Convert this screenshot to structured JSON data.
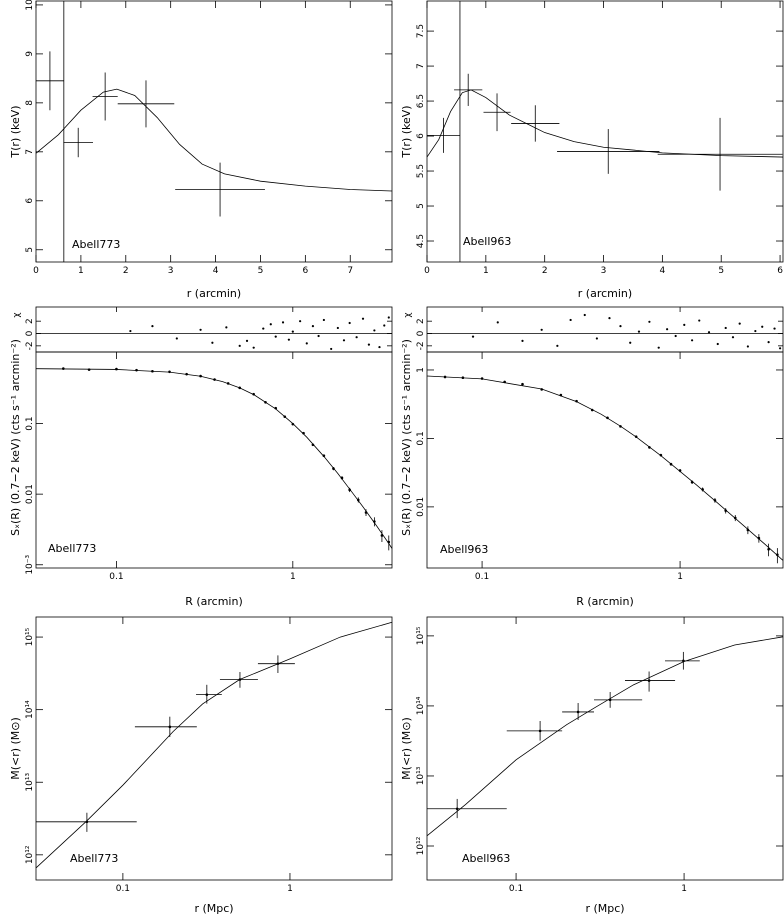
{
  "chart_data": [
    {
      "type": "errorbar",
      "label": "Abell773",
      "xlabel": "r (arcmin)",
      "ylabel": "T(r) (keV)",
      "xlim": [
        0,
        7.93
      ],
      "ylim": [
        4.75,
        10.08
      ],
      "xticks": [
        0,
        1,
        2,
        3,
        4,
        5,
        6,
        7
      ],
      "yticks": [
        5,
        6,
        7,
        8,
        9,
        10
      ],
      "vline": 0.62,
      "points": {
        "x": [
          0.31,
          0.94,
          1.54,
          2.45,
          4.1
        ],
        "xerr": [
          0.31,
          0.33,
          0.28,
          0.63,
          1.0
        ],
        "y": [
          8.45,
          7.19,
          8.13,
          7.98,
          6.23
        ],
        "yerr": [
          0.6,
          0.3,
          0.49,
          0.48,
          0.55
        ]
      },
      "model": {
        "x": [
          0,
          0.5,
          1,
          1.5,
          1.8,
          2.2,
          2.7,
          3.2,
          3.7,
          4.2,
          5,
          6,
          7,
          7.93
        ],
        "y": [
          6.97,
          7.35,
          7.85,
          8.22,
          8.28,
          8.15,
          7.7,
          7.15,
          6.75,
          6.55,
          6.4,
          6.3,
          6.23,
          6.2
        ]
      }
    },
    {
      "type": "errorbar",
      "label": "Abell963",
      "xlabel": "r (arcmin)",
      "ylabel": "T(r) (keV)",
      "xlim": [
        0,
        6.05
      ],
      "ylim": [
        4.2,
        7.93
      ],
      "xticks": [
        0,
        1,
        2,
        3,
        4,
        5,
        6
      ],
      "yticks": [
        4.5,
        5,
        5.5,
        6,
        6.5,
        7,
        7.5
      ],
      "vline": 0.56,
      "points": {
        "x": [
          0.28,
          0.7,
          1.19,
          1.84,
          3.08,
          4.98
        ],
        "xerr": [
          0.28,
          0.24,
          0.23,
          0.41,
          0.87,
          1.06
        ],
        "y": [
          6.01,
          6.66,
          6.34,
          6.18,
          5.78,
          5.74
        ],
        "yerr": [
          0.25,
          0.23,
          0.27,
          0.26,
          0.32,
          0.52
        ]
      },
      "model": {
        "x": [
          0,
          0.2,
          0.4,
          0.6,
          0.75,
          1.0,
          1.4,
          2,
          2.5,
          3,
          4,
          5,
          6.05
        ],
        "y": [
          5.7,
          5.95,
          6.35,
          6.62,
          6.66,
          6.55,
          6.3,
          6.05,
          5.92,
          5.84,
          5.76,
          5.72,
          5.7
        ]
      }
    },
    {
      "type": "errorbar",
      "label": "Abell773",
      "xlabel": "R (arcmin)",
      "ylabel": "Sₓ(R) (0.7−2 keV) (cts s⁻¹ arcmin⁻²)",
      "xscale": "log",
      "yscale": "log",
      "marker": "dot",
      "xlim": [
        0.035,
        3.65
      ],
      "ylim": [
        0.0009,
        1.03
      ],
      "xticks": [
        0.1,
        1
      ],
      "yticks": [
        0.1,
        0.01,
        {
          "value": 0.001,
          "label": "10⁻³"
        }
      ],
      "points": {
        "x": [
          0.05,
          0.07,
          0.1,
          0.13,
          0.16,
          0.2,
          0.25,
          0.3,
          0.36,
          0.43,
          0.5,
          0.6,
          0.7,
          0.8,
          0.9,
          1.0,
          1.15,
          1.3,
          1.5,
          1.7,
          1.9,
          2.1,
          2.35,
          2.6,
          2.9,
          3.2,
          3.5
        ],
        "y": [
          0.6,
          0.58,
          0.59,
          0.57,
          0.55,
          0.54,
          0.5,
          0.47,
          0.42,
          0.37,
          0.32,
          0.26,
          0.2,
          0.165,
          0.125,
          0.098,
          0.073,
          0.05,
          0.035,
          0.023,
          0.017,
          0.0115,
          0.0083,
          0.0055,
          0.0041,
          0.0026,
          0.0021
        ],
        "yerr": [
          0.02,
          0.015,
          0.015,
          0.012,
          0.012,
          0.012,
          0.01,
          0.01,
          0.009,
          0.008,
          0.007,
          0.006,
          0.005,
          0.004,
          0.0035,
          0.003,
          0.0025,
          0.002,
          0.0015,
          0.0012,
          0.001,
          0.0008,
          0.0007,
          0.0006,
          0.0006,
          0.0005,
          0.0005
        ]
      },
      "model": {
        "x": [
          0.035,
          0.1,
          0.2,
          0.3,
          0.4,
          0.5,
          0.6,
          0.8,
          1.0,
          1.2,
          1.5,
          1.8,
          2.1,
          2.5,
          3.0,
          3.5,
          3.65
        ],
        "y": [
          0.598,
          0.583,
          0.535,
          0.467,
          0.392,
          0.32,
          0.257,
          0.161,
          0.1,
          0.064,
          0.0342,
          0.0196,
          0.0118,
          0.0066,
          0.0035,
          0.002,
          0.0017
        ]
      },
      "residuals": {
        "ylabel": "χ",
        "ylim": [
          -3,
          4.3
        ],
        "yticks": [
          -2,
          0,
          2
        ],
        "hline": 0,
        "x": [
          0.12,
          0.16,
          0.22,
          0.3,
          0.35,
          0.42,
          0.5,
          0.55,
          0.6,
          0.68,
          0.75,
          0.8,
          0.88,
          0.95,
          1.0,
          1.1,
          1.2,
          1.3,
          1.4,
          1.5,
          1.65,
          1.8,
          1.95,
          2.1,
          2.3,
          2.5,
          2.7,
          2.9,
          3.1,
          3.3,
          3.5
        ],
        "y": [
          0.4,
          1.2,
          -0.8,
          0.6,
          -1.5,
          1.0,
          -2.0,
          -1.2,
          -2.3,
          0.8,
          1.5,
          -0.5,
          1.8,
          -1.0,
          0.3,
          2.0,
          -1.6,
          1.2,
          -0.4,
          2.2,
          -2.5,
          0.9,
          -1.1,
          1.7,
          -0.6,
          2.4,
          -1.8,
          0.5,
          -2.2,
          1.3,
          2.6
        ]
      }
    },
    {
      "type": "errorbar",
      "label": "Abell963",
      "xlabel": "R (arcmin)",
      "ylabel": "Sₓ(R) (0.7−2 keV) (cts s⁻¹ arcmin⁻²)",
      "xscale": "log",
      "yscale": "log",
      "marker": "dot",
      "xlim": [
        0.0527,
        3.31
      ],
      "ylim": [
        0.00128,
        1.83
      ],
      "xticks": [
        0.1,
        1
      ],
      "yticks": [
        1,
        0.1,
        0.01
      ],
      "points": {
        "x": [
          0.065,
          0.08,
          0.1,
          0.13,
          0.16,
          0.2,
          0.25,
          0.3,
          0.36,
          0.43,
          0.5,
          0.6,
          0.7,
          0.8,
          0.9,
          1.0,
          1.15,
          1.3,
          1.5,
          1.7,
          1.9,
          2.2,
          2.5,
          2.8,
          3.1
        ],
        "y": [
          0.79,
          0.77,
          0.75,
          0.67,
          0.62,
          0.52,
          0.43,
          0.35,
          0.26,
          0.2,
          0.15,
          0.106,
          0.074,
          0.057,
          0.042,
          0.034,
          0.023,
          0.018,
          0.0125,
          0.0088,
          0.0069,
          0.0046,
          0.0035,
          0.0024,
          0.002
        ],
        "yerr": [
          0.03,
          0.02,
          0.02,
          0.015,
          0.014,
          0.012,
          0.01,
          0.009,
          0.007,
          0.006,
          0.005,
          0.004,
          0.003,
          0.0025,
          0.002,
          0.0018,
          0.0014,
          0.0012,
          0.001,
          0.0008,
          0.0007,
          0.0006,
          0.0005,
          0.0005,
          0.0005
        ]
      },
      "model": {
        "x": [
          0.0527,
          0.1,
          0.2,
          0.3,
          0.4,
          0.5,
          0.6,
          0.8,
          1.0,
          1.2,
          1.5,
          1.8,
          2.2,
          2.7,
          3.31
        ],
        "y": [
          0.817,
          0.741,
          0.527,
          0.345,
          0.225,
          0.151,
          0.105,
          0.056,
          0.033,
          0.0214,
          0.0123,
          0.0078,
          0.0047,
          0.0028,
          0.00165
        ]
      },
      "residuals": {
        "ylabel": "χ",
        "ylim": [
          -3,
          4.3
        ],
        "yticks": [
          -2,
          0,
          2
        ],
        "hline": 0,
        "x": [
          0.09,
          0.12,
          0.16,
          0.2,
          0.24,
          0.28,
          0.33,
          0.38,
          0.44,
          0.5,
          0.56,
          0.62,
          0.7,
          0.78,
          0.86,
          0.95,
          1.05,
          1.15,
          1.25,
          1.4,
          1.55,
          1.7,
          1.85,
          2.0,
          2.2,
          2.4,
          2.6,
          2.8,
          3.0,
          3.2
        ],
        "y": [
          -0.5,
          1.8,
          -1.2,
          0.6,
          -2.0,
          2.2,
          3.0,
          -0.8,
          2.5,
          1.2,
          -1.5,
          0.3,
          1.9,
          -2.3,
          0.7,
          -0.4,
          1.4,
          -1.1,
          2.1,
          0.2,
          -1.7,
          0.9,
          -0.6,
          1.6,
          -2.1,
          0.4,
          1.1,
          -1.4,
          0.8,
          -2.4
        ]
      }
    },
    {
      "type": "errorbar",
      "label": "Abell773",
      "xlabel": "r (Mpc)",
      "ylabel": "M(<r) (M⊙)",
      "xscale": "log",
      "yscale": "log",
      "marker": "dot",
      "xlim": [
        0.0302,
        4.08
      ],
      "ylim": [
        450000000000.0,
        1890000000000000.0
      ],
      "xticks": [
        0.1,
        1
      ],
      "yticks": [
        {
          "value": 1000000000000.0,
          "label": "10¹²"
        },
        {
          "value": 10000000000000.0,
          "label": "10¹³"
        },
        {
          "value": 100000000000000.0,
          "label": "10¹⁴"
        },
        {
          "value": 1000000000000000.0,
          "label": "10¹⁵"
        }
      ],
      "points": {
        "x": [
          0.0609,
          0.191,
          0.318,
          0.502,
          0.847
        ],
        "xlo": [
          0.0302,
          0.118,
          0.274,
          0.381,
          0.643
        ],
        "xhi": [
          0.121,
          0.277,
          0.391,
          0.643,
          1.07
        ],
        "y": [
          2850000000000.0,
          58000000000000.0,
          161000000000000.0,
          260000000000000.0,
          430000000000000.0
        ],
        "ylo": [
          2070000000000.0,
          42000000000000.0,
          121000000000000.0,
          200000000000000.0,
          320000000000000.0
        ],
        "yhi": [
          3800000000000.0,
          80000000000000.0,
          220000000000000.0,
          330000000000000.0,
          560000000000000.0
        ]
      },
      "model": {
        "x": [
          0.0302,
          0.06,
          0.1,
          0.2,
          0.3,
          0.5,
          1,
          2,
          4.08
        ],
        "y": [
          660000000000.0,
          2850000000000.0,
          9100000000000.0,
          50000000000000.0,
          120000000000000.0,
          260000000000000.0,
          500000000000000.0,
          1000000000000000.0,
          1600000000000000.0
        ]
      }
    },
    {
      "type": "errorbar",
      "label": "Abell963",
      "xlabel": "r (Mpc)",
      "ylabel": "M(<r) (M⊙)",
      "xscale": "log",
      "yscale": "log",
      "marker": "dot",
      "xlim": [
        0.0295,
        3.88
      ],
      "ylim": [
        327000000000.0,
        1860000000000000.0
      ],
      "xticks": [
        0.1,
        1
      ],
      "yticks": [
        {
          "value": 1000000000000.0,
          "label": "10¹²"
        },
        {
          "value": 10000000000000.0,
          "label": "10¹³"
        },
        {
          "value": 100000000000000.0,
          "label": "10¹⁴"
        },
        {
          "value": 1000000000000000.0,
          "label": "10¹⁵"
        }
      ],
      "points": {
        "x": [
          0.0446,
          0.139,
          0.234,
          0.363,
          0.619,
          0.99
        ],
        "xlo": [
          0.0295,
          0.088,
          0.188,
          0.291,
          0.445,
          0.77
        ],
        "xhi": [
          0.088,
          0.188,
          0.291,
          0.563,
          0.884,
          1.24
        ],
        "y": [
          3400000000000.0,
          44000000000000.0,
          82000000000000.0,
          122000000000000.0,
          230000000000000.0,
          440000000000000.0
        ],
        "ylo": [
          2500000000000.0,
          32000000000000.0,
          63000000000000.0,
          94000000000000.0,
          160000000000000.0,
          330000000000000.0
        ],
        "yhi": [
          4700000000000.0,
          61000000000000.0,
          110000000000000.0,
          158000000000000.0,
          310000000000000.0,
          590000000000000.0
        ]
      },
      "model": {
        "x": [
          0.0295,
          0.05,
          0.1,
          0.2,
          0.3,
          0.5,
          1,
          2,
          3.88
        ],
        "y": [
          1400000000000.0,
          3900000000000.0,
          17000000000000.0,
          54000000000000.0,
          97000000000000.0,
          200000000000000.0,
          430000000000000.0,
          740000000000000.0,
          970000000000000.0
        ]
      }
    }
  ]
}
